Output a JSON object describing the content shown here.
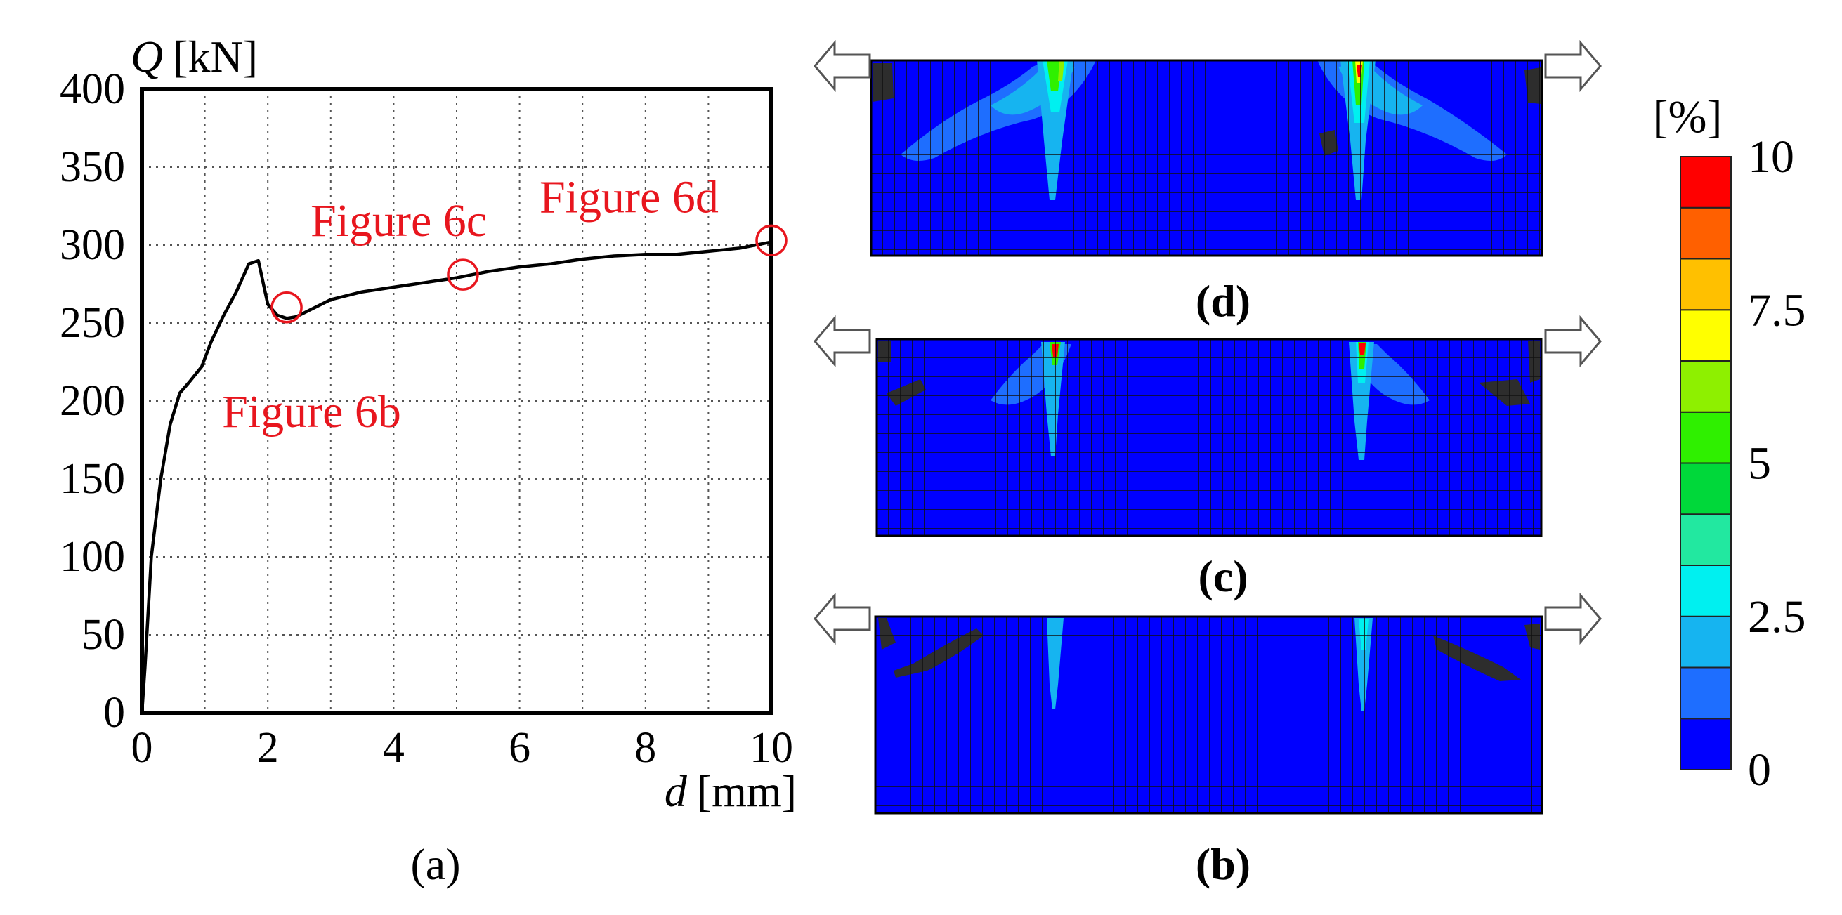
{
  "chart_data": {
    "type": "line",
    "series": [
      {
        "name": "Q-d curve",
        "x": [
          0,
          0.05,
          0.15,
          0.3,
          0.45,
          0.6,
          0.75,
          0.95,
          1.1,
          1.3,
          1.5,
          1.7,
          1.85,
          2.0,
          2.15,
          2.3,
          2.45,
          2.6,
          3.0,
          3.5,
          4.0,
          4.5,
          5.0,
          5.5,
          6.0,
          6.5,
          7.0,
          7.5,
          8.0,
          8.5,
          9.0,
          9.5,
          10.0
        ],
        "y": [
          0,
          30,
          100,
          150,
          185,
          205,
          212,
          222,
          238,
          255,
          270,
          288,
          290,
          262,
          255,
          253,
          254,
          257,
          265,
          270,
          273,
          276,
          279,
          283,
          286,
          288,
          291,
          293,
          294,
          294,
          296,
          298,
          302
        ]
      }
    ],
    "xlabel_var": "d",
    "xlabel_unit": "[mm]",
    "ylabel_var": "Q",
    "ylabel_unit": "[kN]",
    "xlim": [
      0,
      10
    ],
    "ylim": [
      0,
      400
    ],
    "xticks": [
      0,
      2,
      4,
      6,
      8,
      10
    ],
    "yticks": [
      0,
      50,
      100,
      150,
      200,
      250,
      300,
      350,
      400
    ],
    "grid": true,
    "annotations": [
      {
        "text": "Figure 6b",
        "x": 2.3,
        "y": 260
      },
      {
        "text": "Figure 6c",
        "x": 5.1,
        "y": 281
      },
      {
        "text": "Figure 6d",
        "x": 10.0,
        "y": 303
      }
    ],
    "panel_label": "(a)"
  },
  "contour_panels": [
    {
      "label": "(d)"
    },
    {
      "label": "(c)"
    },
    {
      "label": "(b)"
    }
  ],
  "colorbar": {
    "unit": "[%]",
    "tick_labels": [
      "10",
      "7.5",
      "5",
      "2.5",
      "0"
    ],
    "colors": [
      "#0000ff",
      "#1e6eff",
      "#16b4f0",
      "#00f0f0",
      "#22e8a0",
      "#00d83a",
      "#2ff000",
      "#8ef000",
      "#ffff00",
      "#ffc000",
      "#ff6000",
      "#ff0000"
    ]
  },
  "colors": {
    "annotation": "#e8161e",
    "curve": "#000000",
    "crack_dark": "#2d2d2d"
  }
}
